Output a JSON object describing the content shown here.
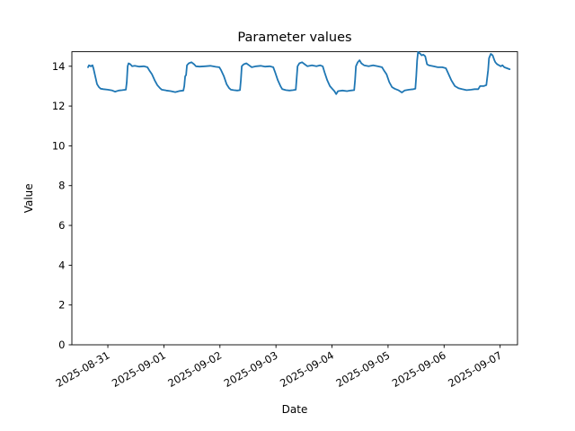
{
  "figure": {
    "title": "Parameter values",
    "xlabel": "Date",
    "ylabel": "Value"
  },
  "chart_data": {
    "type": "line",
    "title": "Parameter values",
    "xlabel": "Date",
    "ylabel": "Value",
    "background": "#ffffff",
    "grid": false,
    "legend": null,
    "line_color": "#1f77b4",
    "line_width": 1.8,
    "x_unit": "days since 2025-08-31 00:00",
    "xlim": [
      -0.642,
      7.31
    ],
    "ylim": [
      0,
      14.73
    ],
    "yticks": [
      0,
      2,
      4,
      6,
      8,
      10,
      12,
      14
    ],
    "xticks": [
      0,
      1,
      2,
      3,
      4,
      5,
      6,
      7
    ],
    "xtick_labels": [
      "2025-08-31",
      "2025-09-01",
      "2025-09-02",
      "2025-09-03",
      "2025-09-04",
      "2025-09-05",
      "2025-09-06",
      "2025-09-07"
    ],
    "xtick_rotation": 30,
    "series": [
      {
        "name": "parameter",
        "x": [
          -0.353,
          -0.337,
          -0.305,
          -0.273,
          -0.257,
          -0.225,
          -0.193,
          -0.16,
          -0.128,
          -0.08,
          0.0,
          0.08,
          0.128,
          0.193,
          0.257,
          0.321,
          0.337,
          0.353,
          0.369,
          0.401,
          0.433,
          0.481,
          0.562,
          0.642,
          0.706,
          0.738,
          0.786,
          0.834,
          0.882,
          0.93,
          0.963,
          1.043,
          1.123,
          1.203,
          1.283,
          1.348,
          1.364,
          1.38,
          1.396,
          1.412,
          1.444,
          1.492,
          1.54,
          1.572,
          1.636,
          1.733,
          1.829,
          1.925,
          1.989,
          2.021,
          2.07,
          2.118,
          2.166,
          2.198,
          2.246,
          2.31,
          2.358,
          2.374,
          2.39,
          2.423,
          2.471,
          2.519,
          2.567,
          2.647,
          2.727,
          2.808,
          2.888,
          2.952,
          2.984,
          3.032,
          3.08,
          3.112,
          3.177,
          3.241,
          3.305,
          3.353,
          3.369,
          3.385,
          3.417,
          3.466,
          3.514,
          3.562,
          3.642,
          3.722,
          3.786,
          3.834,
          3.867,
          3.915,
          3.963,
          4.011,
          4.043,
          4.075,
          4.107,
          4.187,
          4.267,
          4.332,
          4.396,
          4.412,
          4.428,
          4.46,
          4.492,
          4.524,
          4.572,
          4.653,
          4.733,
          4.813,
          4.893,
          4.925,
          4.973,
          5.022,
          5.07,
          5.118,
          5.182,
          5.246,
          5.294,
          5.374,
          5.455,
          5.487,
          5.503,
          5.519,
          5.535,
          5.567,
          5.599,
          5.631,
          5.663,
          5.695,
          5.727,
          5.808,
          5.888,
          5.968,
          6.032,
          6.064,
          6.129,
          6.193,
          6.257,
          6.321,
          6.401,
          6.482,
          6.546,
          6.61,
          6.642,
          6.706,
          6.754,
          6.786,
          6.802,
          6.834,
          6.866,
          6.898,
          6.914,
          6.947,
          6.979,
          7.011,
          7.043,
          7.075,
          7.123,
          7.171
        ],
        "y": [
          13.95,
          14.05,
          14.0,
          14.05,
          13.9,
          13.5,
          13.1,
          12.95,
          12.87,
          12.85,
          12.82,
          12.78,
          12.72,
          12.78,
          12.8,
          12.82,
          13.2,
          14.0,
          14.15,
          14.1,
          14.0,
          14.02,
          13.98,
          14.0,
          13.95,
          13.8,
          13.6,
          13.3,
          13.05,
          12.9,
          12.82,
          12.78,
          12.75,
          12.7,
          12.76,
          12.78,
          13.0,
          13.5,
          13.55,
          14.05,
          14.15,
          14.2,
          14.1,
          14.0,
          13.98,
          14.0,
          14.02,
          13.97,
          13.95,
          13.8,
          13.5,
          13.1,
          12.9,
          12.82,
          12.8,
          12.78,
          12.8,
          13.3,
          14.0,
          14.1,
          14.15,
          14.05,
          13.95,
          14.0,
          14.02,
          13.98,
          14.0,
          13.95,
          13.7,
          13.3,
          13.0,
          12.85,
          12.8,
          12.78,
          12.8,
          12.82,
          13.4,
          14.0,
          14.15,
          14.2,
          14.1,
          14.0,
          14.05,
          14.0,
          14.05,
          14.0,
          13.7,
          13.3,
          13.0,
          12.85,
          12.75,
          12.6,
          12.75,
          12.78,
          12.75,
          12.78,
          12.8,
          13.3,
          14.0,
          14.2,
          14.3,
          14.15,
          14.05,
          14.0,
          14.05,
          14.0,
          13.95,
          13.8,
          13.6,
          13.2,
          12.95,
          12.87,
          12.8,
          12.68,
          12.78,
          12.82,
          12.85,
          12.87,
          13.5,
          14.3,
          14.72,
          14.65,
          14.55,
          14.58,
          14.5,
          14.1,
          14.05,
          14.0,
          13.95,
          13.95,
          13.9,
          13.7,
          13.3,
          13.0,
          12.9,
          12.85,
          12.8,
          12.82,
          12.85,
          12.85,
          13.0,
          13.0,
          13.05,
          13.8,
          14.4,
          14.62,
          14.55,
          14.3,
          14.2,
          14.1,
          14.05,
          14.0,
          14.05,
          13.95,
          13.9,
          13.85
        ]
      }
    ]
  }
}
